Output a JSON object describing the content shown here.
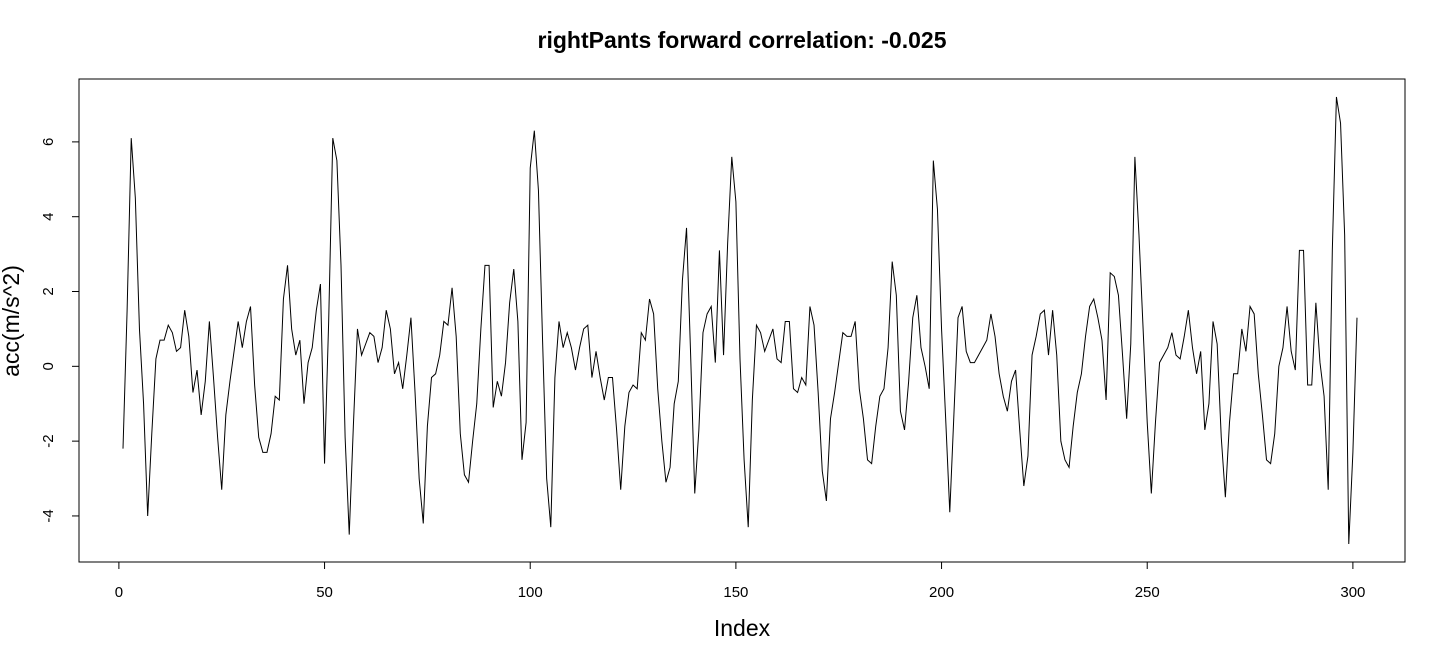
{
  "chart_data": {
    "type": "line",
    "title": "rightPants forward correlation: -0.025",
    "xlabel": "Index",
    "ylabel": "acc(m/s^2)",
    "xlim": [
      1,
      301
    ],
    "ylim": [
      -4.75,
      7.2
    ],
    "x_ticks": [
      0,
      50,
      100,
      150,
      200,
      250,
      300
    ],
    "y_ticks": [
      -4,
      -2,
      0,
      2,
      4,
      6
    ],
    "grid": false,
    "line_color": "#000000",
    "series": [
      {
        "values": [
          -2.2,
          1.5,
          6.1,
          4.5,
          1.0,
          -1.0,
          -4.0,
          -1.8,
          0.2,
          0.7,
          0.7,
          1.1,
          0.9,
          0.4,
          0.5,
          1.5,
          0.8,
          -0.7,
          -0.1,
          -1.3,
          -0.4,
          1.2,
          -0.3,
          -1.9,
          -3.3,
          -1.3,
          -0.4,
          0.4,
          1.2,
          0.5,
          1.2,
          1.6,
          -0.5,
          -1.9,
          -2.3,
          -2.3,
          -1.8,
          -0.8,
          -0.9,
          1.8,
          2.7,
          1.0,
          0.3,
          0.7,
          -1.0,
          0.1,
          0.5,
          1.5,
          2.2,
          -2.6,
          1.2,
          6.1,
          5.5,
          2.7,
          -1.9,
          -4.5,
          -1.6,
          1.0,
          0.3,
          0.6,
          0.9,
          0.8,
          0.1,
          0.5,
          1.5,
          1.0,
          -0.2,
          0.1,
          -0.6,
          0.3,
          1.3,
          -0.7,
          -3.0,
          -4.2,
          -1.6,
          -0.3,
          -0.2,
          0.3,
          1.2,
          1.1,
          2.1,
          0.8,
          -1.8,
          -2.9,
          -3.1,
          -2.0,
          -1.0,
          1.0,
          2.7,
          2.7,
          -1.1,
          -0.4,
          -0.8,
          0.1,
          1.7,
          2.6,
          1.2,
          -2.5,
          -1.5,
          5.3,
          6.3,
          4.7,
          0.7,
          -3.0,
          -4.3,
          -0.3,
          1.2,
          0.5,
          0.9,
          0.5,
          -0.1,
          0.5,
          1.0,
          1.1,
          -0.3,
          0.4,
          -0.3,
          -0.9,
          -0.3,
          -0.3,
          -1.7,
          -3.3,
          -1.6,
          -0.7,
          -0.5,
          -0.6,
          0.9,
          0.7,
          1.8,
          1.4,
          -0.6,
          -2.0,
          -3.1,
          -2.7,
          -1.0,
          -0.4,
          2.3,
          3.7,
          0.3,
          -3.4,
          -1.7,
          0.9,
          1.4,
          1.6,
          0.1,
          3.1,
          0.3,
          3.3,
          5.6,
          4.4,
          0.2,
          -2.5,
          -4.3,
          -0.9,
          1.1,
          0.9,
          0.4,
          0.7,
          1.0,
          0.2,
          0.1,
          1.2,
          1.2,
          -0.6,
          -0.7,
          -0.3,
          -0.5,
          1.6,
          1.1,
          -0.7,
          -2.8,
          -3.6,
          -1.4,
          -0.7,
          0.1,
          0.9,
          0.8,
          0.8,
          1.2,
          -0.6,
          -1.4,
          -2.5,
          -2.6,
          -1.6,
          -0.8,
          -0.6,
          0.5,
          2.8,
          1.9,
          -1.2,
          -1.7,
          -0.4,
          1.3,
          1.9,
          0.5,
          0.0,
          -0.6,
          5.5,
          4.2,
          1.0,
          -1.4,
          -3.9,
          -1.3,
          1.3,
          1.6,
          0.4,
          0.1,
          0.1,
          0.3,
          0.5,
          0.7,
          1.4,
          0.8,
          -0.2,
          -0.8,
          -1.2,
          -0.4,
          -0.1,
          -1.7,
          -3.2,
          -2.4,
          0.3,
          0.8,
          1.4,
          1.5,
          0.3,
          1.5,
          0.3,
          -2.0,
          -2.5,
          -2.7,
          -1.6,
          -0.7,
          -0.2,
          0.8,
          1.6,
          1.8,
          1.3,
          0.7,
          -0.9,
          2.5,
          2.4,
          1.9,
          0.3,
          -1.4,
          0.6,
          5.6,
          3.5,
          1.0,
          -1.5,
          -3.4,
          -1.5,
          0.1,
          0.3,
          0.5,
          0.9,
          0.3,
          0.2,
          0.8,
          1.5,
          0.5,
          -0.2,
          0.4,
          -1.7,
          -1.0,
          1.2,
          0.6,
          -1.9,
          -3.5,
          -1.5,
          -0.2,
          -0.2,
          1.0,
          0.4,
          1.6,
          1.4,
          -0.2,
          -1.3,
          -2.5,
          -2.6,
          -1.8,
          0.0,
          0.5,
          1.6,
          0.4,
          -0.1,
          3.1,
          3.1,
          -0.5,
          -0.5,
          1.7,
          0.1,
          -0.8,
          -3.3,
          3.1,
          7.2,
          6.5,
          3.5,
          -4.75,
          -2.3,
          1.3
        ]
      }
    ]
  }
}
